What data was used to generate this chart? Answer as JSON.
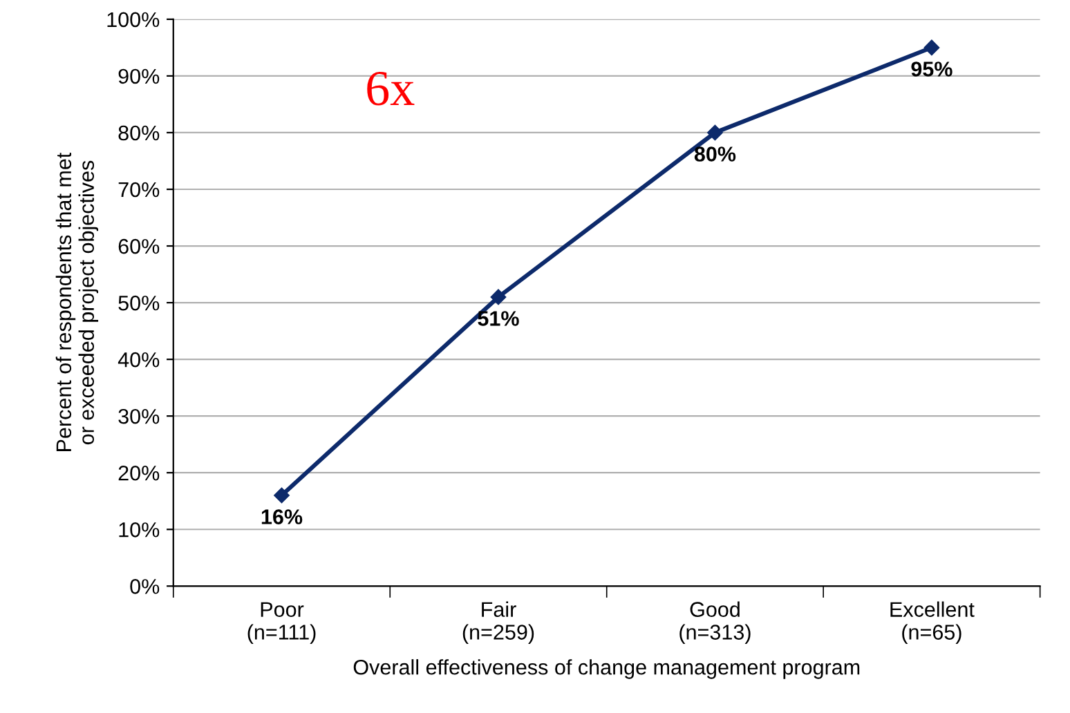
{
  "chart_data": {
    "type": "line",
    "xlabel": "Overall effectiveness of change management program",
    "ylabel": "Percent of respondents that met\nor exceeded project objectives",
    "categories": [
      "Poor\n(n=111)",
      "Fair\n(n=259)",
      "Good\n(n=313)",
      "Excellent\n(n=65)"
    ],
    "series": [
      {
        "color": "#0d2a6b",
        "values": [
          16,
          51,
          80,
          95
        ],
        "value_labels": [
          "16%",
          "51%",
          "80%",
          "95%"
        ]
      }
    ],
    "ylim": [
      0,
      100
    ],
    "yticks": [
      {
        "value": 0,
        "label": "0%"
      },
      {
        "value": 10,
        "label": "10%"
      },
      {
        "value": 20,
        "label": "20%"
      },
      {
        "value": 30,
        "label": "30%"
      },
      {
        "value": 40,
        "label": "40%"
      },
      {
        "value": 50,
        "label": "50%"
      },
      {
        "value": 60,
        "label": "60%"
      },
      {
        "value": 70,
        "label": "70%"
      },
      {
        "value": 80,
        "label": "80%"
      },
      {
        "value": 90,
        "label": "90%"
      },
      {
        "value": 100,
        "label": "100%"
      }
    ],
    "grid": "y",
    "marker": "diamond",
    "line_style": "solid",
    "legend": false,
    "annotations": [
      "6x"
    ]
  }
}
